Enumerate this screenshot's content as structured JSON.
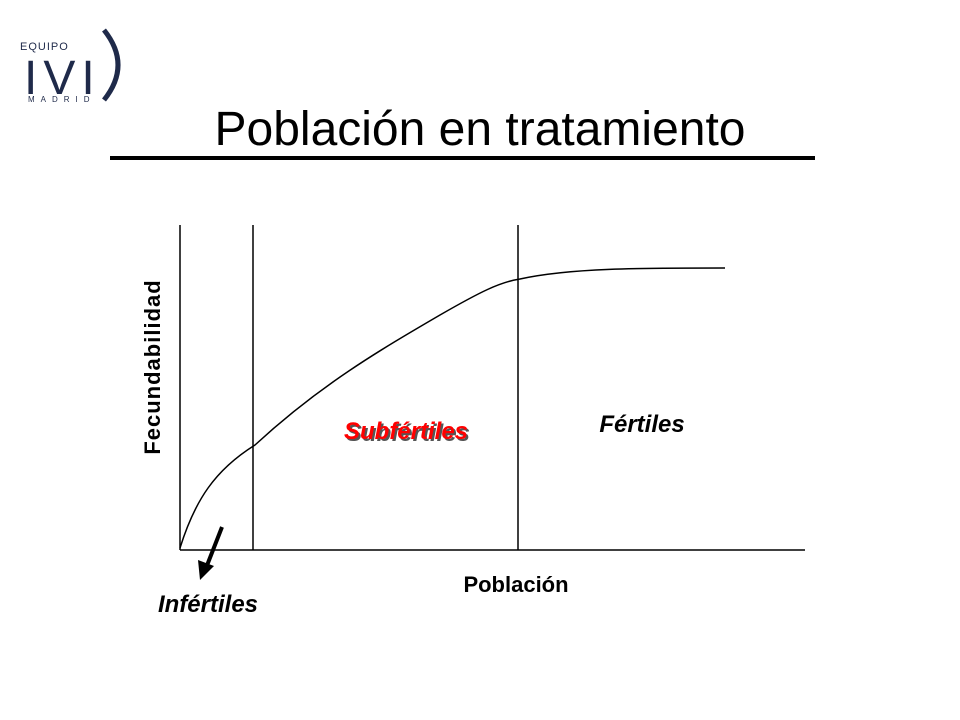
{
  "logo": {
    "top": "EQUIPO",
    "main": "IVI",
    "bottom": "MADRID"
  },
  "title": "Población en tratamiento",
  "diagram": {
    "y_axis_label": "Fecundabilidad",
    "x_axis_label": "Población",
    "regions": {
      "subfertile": "Subfértiles",
      "fertile": "Fértiles",
      "infertile": "Infértiles"
    }
  }
}
